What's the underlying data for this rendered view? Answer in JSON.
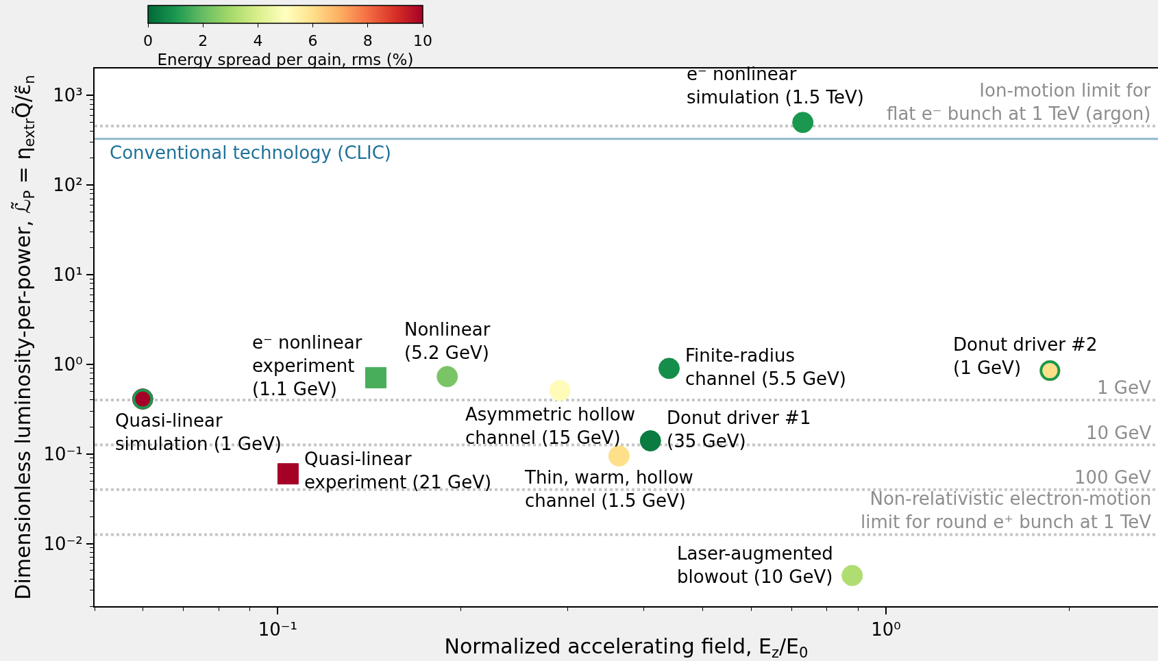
{
  "chart_data": {
    "type": "scatter",
    "xlabel": "Normalized accelerating field, E$_{z}$/E$_{0}$",
    "ylabel": "Dimensionless luminosity-per-power, ℒ̃$_{P}$ = η$_{extr}$Q̃/ε̃$_{n}$",
    "clabel": "Energy spread per gain, rms (%)",
    "log": "xy",
    "xlim": [
      0.05,
      2.8
    ],
    "xticks": [
      {
        "value": 0.1,
        "label": "10⁻¹"
      },
      {
        "value": 1,
        "label": "10⁰"
      },
      {
        "value": 0.05,
        "label": null
      },
      {
        "value": 0.06,
        "label": null
      },
      {
        "value": 0.07,
        "label": null
      },
      {
        "value": 0.08,
        "label": null
      },
      {
        "value": 0.09,
        "label": null
      },
      {
        "value": 0.2,
        "label": null
      },
      {
        "value": 0.3,
        "label": null
      },
      {
        "value": 0.4,
        "label": null
      },
      {
        "value": 0.5,
        "label": null
      },
      {
        "value": 0.6,
        "label": null
      },
      {
        "value": 0.7,
        "label": null
      },
      {
        "value": 0.8,
        "label": null
      },
      {
        "value": 0.9,
        "label": null
      },
      {
        "value": 2,
        "label": null
      }
    ],
    "ylim": [
      0.002,
      2000
    ],
    "yticks": [
      {
        "value": 0.01,
        "label": "10⁻²"
      },
      {
        "value": 0.1,
        "label": "10⁻¹"
      },
      {
        "value": 1,
        "label": "10⁰"
      },
      {
        "value": 10,
        "label": "10¹"
      },
      {
        "value": 100,
        "label": "10²"
      },
      {
        "value": 1000,
        "label": "10³"
      },
      {
        "value": 0.002,
        "label": null
      },
      {
        "value": 0.003,
        "label": null
      },
      {
        "value": 0.004,
        "label": null
      },
      {
        "value": 0.005,
        "label": null
      },
      {
        "value": 0.006,
        "label": null
      },
      {
        "value": 0.007,
        "label": null
      },
      {
        "value": 0.008,
        "label": null
      },
      {
        "value": 0.009,
        "label": null
      },
      {
        "value": 0.02,
        "label": null
      },
      {
        "value": 0.03,
        "label": null
      },
      {
        "value": 0.04,
        "label": null
      },
      {
        "value": 0.05,
        "label": null
      },
      {
        "value": 0.06,
        "label": null
      },
      {
        "value": 0.07,
        "label": null
      },
      {
        "value": 0.08,
        "label": null
      },
      {
        "value": 0.09,
        "label": null
      },
      {
        "value": 0.2,
        "label": null
      },
      {
        "value": 0.3,
        "label": null
      },
      {
        "value": 0.4,
        "label": null
      },
      {
        "value": 0.5,
        "label": null
      },
      {
        "value": 0.6,
        "label": null
      },
      {
        "value": 0.7,
        "label": null
      },
      {
        "value": 0.8,
        "label": null
      },
      {
        "value": 0.9,
        "label": null
      },
      {
        "value": 2,
        "label": null
      },
      {
        "value": 3,
        "label": null
      },
      {
        "value": 4,
        "label": null
      },
      {
        "value": 5,
        "label": null
      },
      {
        "value": 6,
        "label": null
      },
      {
        "value": 7,
        "label": null
      },
      {
        "value": 8,
        "label": null
      },
      {
        "value": 9,
        "label": null
      },
      {
        "value": 20,
        "label": null
      },
      {
        "value": 30,
        "label": null
      },
      {
        "value": 40,
        "label": null
      },
      {
        "value": 50,
        "label": null
      },
      {
        "value": 60,
        "label": null
      },
      {
        "value": 70,
        "label": null
      },
      {
        "value": 80,
        "label": null
      },
      {
        "value": 90,
        "label": null
      },
      {
        "value": 200,
        "label": null
      },
      {
        "value": 300,
        "label": null
      },
      {
        "value": 400,
        "label": null
      },
      {
        "value": 500,
        "label": null
      },
      {
        "value": 600,
        "label": null
      },
      {
        "value": 700,
        "label": null
      },
      {
        "value": 800,
        "label": null
      },
      {
        "value": 900,
        "label": null
      }
    ],
    "clim": [
      0,
      10
    ],
    "cticks": [
      0,
      2,
      4,
      6,
      8,
      10
    ],
    "series": [
      {
        "marker": "circle",
        "x": [
          0.06,
          0.19,
          0.291,
          0.44,
          0.41,
          0.364,
          0.88,
          1.86,
          0.73
        ],
        "values": [
          0.41,
          0.73,
          0.51,
          0.9,
          0.14,
          0.095,
          0.0044,
          0.85,
          500
        ],
        "cvalues": [
          10,
          2.3,
          5.1,
          0.8,
          0.4,
          6,
          3.2,
          6,
          1
        ],
        "colors": [
          "#a50026",
          "#79c565",
          "#fffcba",
          "#158e4b",
          "#0a7b41",
          "#fee08b",
          "#b0dd71",
          "#fee08b",
          "#1a9850"
        ]
      },
      {
        "marker": "square",
        "x": [
          0.145,
          0.104
        ],
        "values": [
          0.71,
          0.06
        ],
        "cvalues": [
          1.6,
          10
        ],
        "colors": [
          "#48ae5b",
          "#a50026"
        ]
      },
      {
        "marker": "circle",
        "x": [
          0.06,
          1.86
        ],
        "values": [
          0.41,
          0.85
        ],
        "cvalues": [
          1,
          1
        ]
      }
    ],
    "ref_lines": [
      {
        "axis": "y",
        "value": 456,
        "label": "Ion-motion limit for\nflat e⁻ bunch at 1 TeV (argon)",
        "color": "#c6c6c6",
        "line_style": "dotted"
      },
      {
        "axis": "y",
        "value": 328,
        "label": "Conventional technology (CLIC)",
        "color": "#8fb8cc",
        "line_style": "solid"
      },
      {
        "axis": "y",
        "value": 0.4,
        "label": "1 GeV",
        "color": "#c6c6c6",
        "line_style": "dotted"
      },
      {
        "axis": "y",
        "value": 0.126,
        "label": "10 GeV",
        "color": "#c6c6c6",
        "line_style": "dotted"
      },
      {
        "axis": "y",
        "value": 0.04,
        "label": "100 GeV",
        "color": "#c6c6c6",
        "line_style": "dotted"
      },
      {
        "axis": "y",
        "value": 0.0126,
        "label": "Non-relativistic electron-motion\nlimit for round e⁺ bunch at 1 TeV",
        "color": "#c6c6c6",
        "line_style": "dotted"
      }
    ],
    "annotations": [
      {
        "text": "Quasi-linear\nsimulation (1 GeV)",
        "x": 0.06,
        "y": 0.41
      },
      {
        "text": "e⁻ nonlinear\nexperiment\n(1.1 GeV)",
        "x": 0.145,
        "y": 0.71
      },
      {
        "text": "Nonlinear\n(5.2 GeV)",
        "x": 0.19,
        "y": 0.73
      },
      {
        "text": "Asymmetric hollow\nchannel (15 GeV)",
        "x": 0.291,
        "y": 0.51
      },
      {
        "text": "Finite-radius\nchannel (5.5 GeV)",
        "x": 0.44,
        "y": 0.9
      },
      {
        "text": "Donut driver #1\n(35 GeV)",
        "x": 0.41,
        "y": 0.14
      },
      {
        "text": "Thin, warm, hollow\nchannel (1.5 GeV)",
        "x": 0.364,
        "y": 0.095
      },
      {
        "text": "Laser-augmented\nblowout (10 GeV)",
        "x": 0.88,
        "y": 0.0044
      },
      {
        "text": "Donut driver #2\n(1 GeV)",
        "x": 1.86,
        "y": 0.85
      },
      {
        "text": "e⁻ nonlinear\nsimulation (1.5 TeV)",
        "x": 0.73,
        "y": 500
      },
      {
        "text": "Quasi-linear\nexperiment (21 GeV)",
        "x": 0.104,
        "y": 0.06
      }
    ]
  }
}
